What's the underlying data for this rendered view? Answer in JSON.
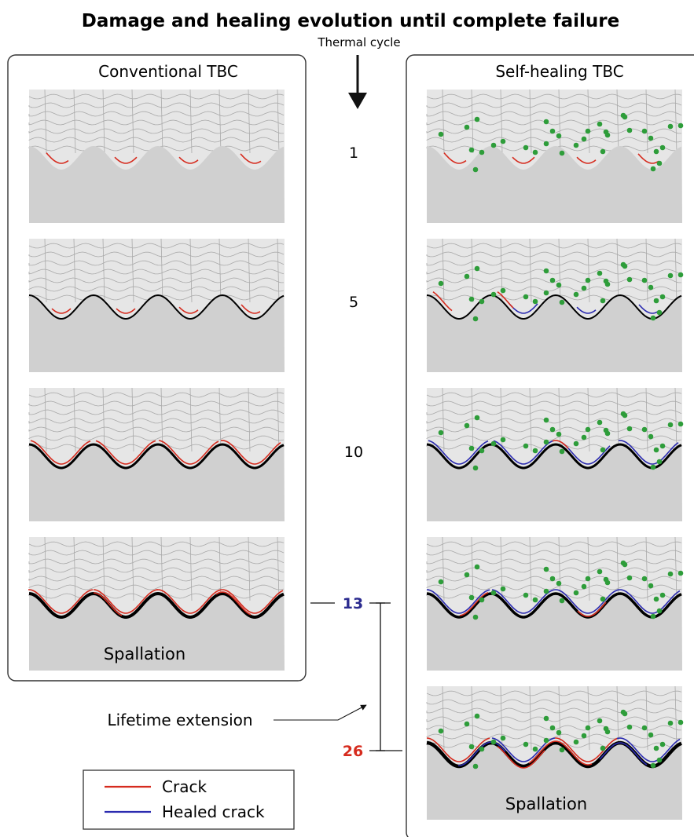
{
  "title": "Damage and healing evolution until complete failure",
  "axis_label": "Thermal cycle",
  "left_panel": {
    "title": "Conventional TBC",
    "bottom_label": "Spallation"
  },
  "right_panel": {
    "title": "Self-healing TBC",
    "bottom_label": "Spallation"
  },
  "cycles": [
    {
      "label": "1"
    },
    {
      "label": "5"
    },
    {
      "label": "10"
    },
    {
      "label": "13",
      "color": "#2b2b8f"
    },
    {
      "label": "26",
      "color": "#d62b1e"
    }
  ],
  "annotation": "Lifetime extension",
  "legend": [
    {
      "label": "Crack",
      "color": "#d62b1e"
    },
    {
      "label": "Healed crack",
      "color": "#2b2bb0"
    }
  ],
  "colors": {
    "ceramic": "#e6e6e6",
    "substrate": "#d0d0d0",
    "bondcoat": "#d9d9d9",
    "grid": "#a9a9a9",
    "healing_particle": "#2e9d3a"
  }
}
